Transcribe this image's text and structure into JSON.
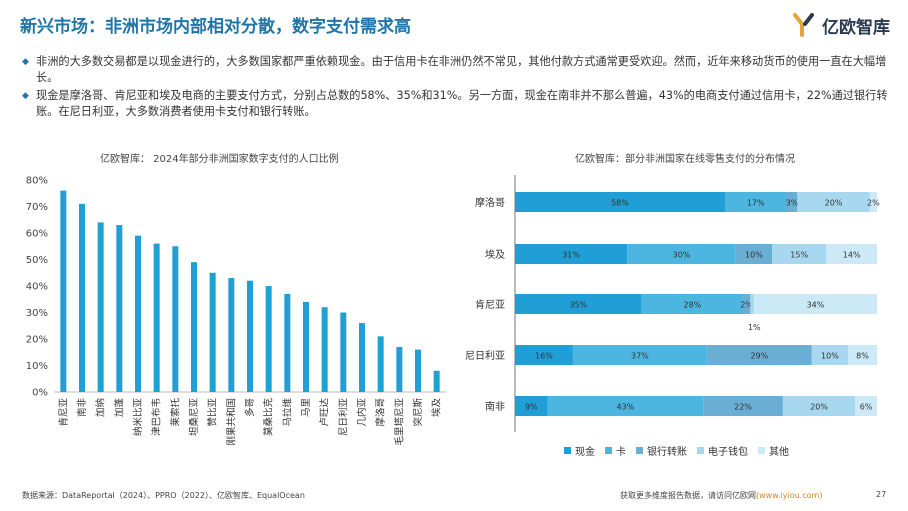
{
  "title": "新兴市场：非洲市场内部相对分散，数字支付需求高",
  "logo": {
    "text": "亿欧智库"
  },
  "bullets": [
    "非洲的大多数交易都是以现金进行的，大多数国家都严重依赖现金。由于信用卡在非洲仍然不常见，其他付款方式通常更受欢迎。然而，近年来移动货币的使用一直在大幅增长。",
    "现金是摩洛哥、肯尼亚和埃及电商的主要支付方式，分别占总数的58%、35%和31%。另一方面，现金在南非并不那么普遍，43%的电商支付通过信用卡，22%通过银行转账。在尼日利亚，大多数消费者使用卡支付和银行转账。"
  ],
  "chart_data": [
    {
      "type": "bar",
      "title": "亿欧智库：   2024年部分非洲国家数字支付的人口比例",
      "categories": [
        "肯尼亚",
        "南非",
        "加纳",
        "加蓬",
        "纳米比亚",
        "津巴布韦",
        "莱索托",
        "坦桑尼亚",
        "赞比亚",
        "刚果共和国",
        "多哥",
        "莫桑比克",
        "马拉维",
        "马里",
        "卢旺达",
        "尼日利亚",
        "几内亚",
        "摩洛哥",
        "毛里塔尼亚",
        "突尼斯",
        "埃及"
      ],
      "values": [
        76,
        71,
        64,
        63,
        59,
        56,
        55,
        49,
        45,
        43,
        42,
        40,
        37,
        34,
        32,
        30,
        26,
        21,
        17,
        16,
        8
      ],
      "ylim": [
        0,
        80
      ],
      "yticks": [
        "0%",
        "10%",
        "20%",
        "30%",
        "40%",
        "50%",
        "60%",
        "70%",
        "80%"
      ],
      "color": "#1f9fd6"
    },
    {
      "type": "bar",
      "stacked": true,
      "orientation": "horizontal",
      "title": "亿欧智库：部分非洲国家在线零售支付的分布情况",
      "categories": [
        "摩洛哥",
        "埃及",
        "肯尼亚",
        "尼日利亚",
        "南非"
      ],
      "series": [
        {
          "name": "现金",
          "color": "#1f9fd6",
          "values": [
            58,
            31,
            35,
            16,
            9
          ]
        },
        {
          "name": "卡",
          "color": "#4cb5e0",
          "values": [
            17,
            30,
            28,
            37,
            43
          ]
        },
        {
          "name": "银行转账",
          "color": "#6aaed3",
          "values": [
            3,
            10,
            2,
            29,
            22
          ]
        },
        {
          "name": "电子钱包",
          "color": "#a8d8ef",
          "values": [
            20,
            15,
            1,
            10,
            20
          ]
        },
        {
          "name": "其他",
          "color": "#cbe9f6",
          "values": [
            2,
            14,
            34,
            8,
            6
          ]
        }
      ],
      "labels": [
        [
          "58%",
          "17%",
          "3%",
          "20%",
          "2%"
        ],
        [
          "31%",
          "30%",
          "10%",
          "15%",
          "14%"
        ],
        [
          "35%",
          "28%",
          "2%",
          "1%",
          "34%"
        ],
        [
          "16%",
          "37%",
          "29%",
          "10%",
          "8%"
        ],
        [
          "9%",
          "43%",
          "22%",
          "20%",
          "6%"
        ]
      ],
      "xlim": [
        0,
        100
      ]
    }
  ],
  "legend": [
    "现金",
    "卡",
    "银行转账",
    "电子钱包",
    "其他"
  ],
  "footer": {
    "source": "数据来源：DataReportal（2024）、PPRO（2022）、亿欧智库、EqualOcean",
    "cta": "获取更多维度报告数据，请访问亿欧网",
    "link": "(www.iyiou.com)",
    "page": "27"
  },
  "colors": {
    "accent": "#1f74a8",
    "bar": "#1f9fd6"
  }
}
